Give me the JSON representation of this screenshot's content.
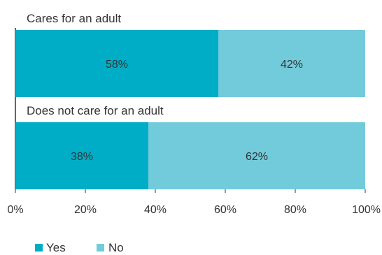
{
  "chart_data": {
    "type": "bar",
    "orientation": "horizontal",
    "stacked": true,
    "categories": [
      "Cares for an adult",
      "Does not care for an adult"
    ],
    "series": [
      {
        "name": "Yes",
        "values": [
          58,
          38
        ],
        "labels": [
          "58%",
          "38%"
        ],
        "color": "#00adc6"
      },
      {
        "name": "No",
        "values": [
          42,
          62
        ],
        "labels": [
          "42%",
          "62%"
        ],
        "color": "#72cbdb"
      }
    ],
    "xlim": [
      0,
      100
    ],
    "x_ticks": [
      0,
      20,
      40,
      60,
      80,
      100
    ],
    "x_tick_labels": [
      "0%",
      "20%",
      "40%",
      "60%",
      "80%",
      "100%"
    ],
    "legend": {
      "position": "bottom-left",
      "entries": [
        "Yes",
        "No"
      ]
    },
    "grid": false
  }
}
